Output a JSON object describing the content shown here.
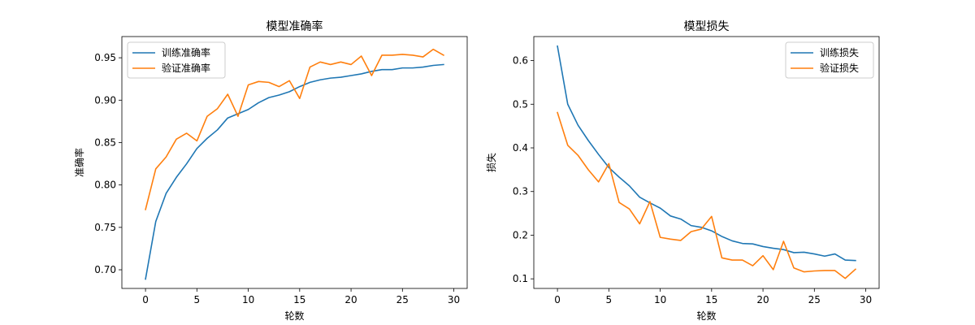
{
  "chart_data": [
    {
      "type": "line",
      "title": "模型准确率",
      "xlabel": "轮数",
      "ylabel": "准确率",
      "xlim": [
        -2.3,
        31.3
      ],
      "ylim": [
        0.678,
        0.975
      ],
      "xticks": [
        0,
        5,
        10,
        15,
        20,
        25,
        30
      ],
      "yticks": [
        0.7,
        0.75,
        0.8,
        0.85,
        0.9,
        0.95
      ],
      "ytick_labels": [
        "0.70",
        "0.75",
        "0.80",
        "0.85",
        "0.90",
        "0.95"
      ],
      "legend_position": "top-left",
      "x": [
        0,
        1,
        2,
        3,
        4,
        5,
        6,
        7,
        8,
        9,
        10,
        11,
        12,
        13,
        14,
        15,
        16,
        17,
        18,
        19,
        20,
        21,
        22,
        23,
        24,
        25,
        26,
        27,
        28,
        29
      ],
      "series": [
        {
          "name": "训练准确率",
          "color": "#1f77b4",
          "values": [
            0.689,
            0.757,
            0.79,
            0.809,
            0.825,
            0.843,
            0.855,
            0.865,
            0.879,
            0.884,
            0.889,
            0.897,
            0.903,
            0.906,
            0.91,
            0.916,
            0.921,
            0.924,
            0.926,
            0.927,
            0.929,
            0.931,
            0.934,
            0.936,
            0.936,
            0.938,
            0.938,
            0.939,
            0.941,
            0.942
          ]
        },
        {
          "name": "验证准确率",
          "color": "#ff7f0e",
          "values": [
            0.771,
            0.819,
            0.833,
            0.854,
            0.861,
            0.852,
            0.881,
            0.89,
            0.907,
            0.881,
            0.918,
            0.922,
            0.921,
            0.916,
            0.923,
            0.902,
            0.939,
            0.945,
            0.942,
            0.945,
            0.942,
            0.952,
            0.929,
            0.953,
            0.953,
            0.954,
            0.953,
            0.951,
            0.96,
            0.953
          ]
        }
      ]
    },
    {
      "type": "line",
      "title": "模型损失",
      "xlabel": "轮数",
      "ylabel": "损失",
      "xlim": [
        -2.3,
        31.3
      ],
      "ylim": [
        0.078,
        0.655
      ],
      "xticks": [
        0,
        5,
        10,
        15,
        20,
        25,
        30
      ],
      "yticks": [
        0.1,
        0.2,
        0.3,
        0.4,
        0.5,
        0.6
      ],
      "ytick_labels": [
        "0.1",
        "0.2",
        "0.3",
        "0.4",
        "0.5",
        "0.6"
      ],
      "legend_position": "top-right",
      "x": [
        0,
        1,
        2,
        3,
        4,
        5,
        6,
        7,
        8,
        9,
        10,
        11,
        12,
        13,
        14,
        15,
        16,
        17,
        18,
        19,
        20,
        21,
        22,
        23,
        24,
        25,
        26,
        27,
        28,
        29
      ],
      "series": [
        {
          "name": "训练损失",
          "color": "#1f77b4",
          "values": [
            0.633,
            0.5,
            0.452,
            0.417,
            0.385,
            0.355,
            0.333,
            0.313,
            0.287,
            0.274,
            0.262,
            0.244,
            0.237,
            0.222,
            0.218,
            0.21,
            0.197,
            0.187,
            0.181,
            0.18,
            0.174,
            0.17,
            0.167,
            0.16,
            0.161,
            0.157,
            0.152,
            0.157,
            0.143,
            0.142
          ]
        },
        {
          "name": "验证损失",
          "color": "#ff7f0e",
          "values": [
            0.481,
            0.406,
            0.383,
            0.35,
            0.322,
            0.364,
            0.275,
            0.26,
            0.226,
            0.277,
            0.195,
            0.191,
            0.188,
            0.208,
            0.214,
            0.243,
            0.148,
            0.143,
            0.143,
            0.13,
            0.153,
            0.121,
            0.186,
            0.125,
            0.116,
            0.118,
            0.119,
            0.119,
            0.101,
            0.122
          ]
        }
      ]
    }
  ]
}
